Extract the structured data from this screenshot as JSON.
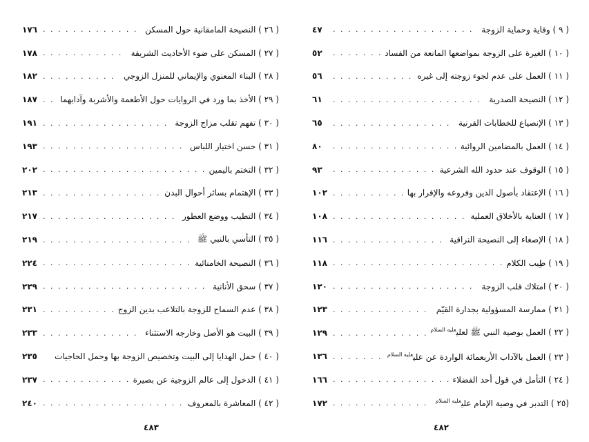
{
  "right_page": {
    "folio": "٤٨٢",
    "entries": [
      {
        "num": "( ٩ )",
        "title": "وقاية وحماية الزوجة",
        "page": "٤٧"
      },
      {
        "num": "( ١٠ )",
        "title": "الغيرة على الزوجة بمواضعها المانعة من الفساد",
        "page": "٥٢"
      },
      {
        "num": "( ١١ )",
        "title": "العمل على عدم لجوء زوجته إلى غيره",
        "page": "٥٦"
      },
      {
        "num": "( ١٢ )",
        "title": "النصيحة الصدرية",
        "page": "٦١"
      },
      {
        "num": "( ١٣ )",
        "title": "الإنصياع للخطابات القرنية",
        "page": "٦٥"
      },
      {
        "num": "( ١٤ )",
        "title": "العمل بالمضامين الروائية",
        "page": "٨٠"
      },
      {
        "num": "( ١٥ )",
        "title": "الوقوف عند حدود الله الشرعية",
        "page": "٩٣"
      },
      {
        "num": "( ١٦ )",
        "title": "الإعتقاد بأصول الدين وفروعه والإقرار بها",
        "page": "١٠٢"
      },
      {
        "num": "( ١٧ )",
        "title": "العناية بالأخلاق العملية",
        "page": "١٠٨"
      },
      {
        "num": "( ١٨ )",
        "title": "الإصغاء إلى النصيحة النراقية",
        "page": "١١٦"
      },
      {
        "num": "( ١٩ )",
        "title": "طِيب الكلام",
        "page": "١١٨"
      },
      {
        "num": "( ٢٠ )",
        "title": "امتلاك قلب الزوجة",
        "page": "١٢٠"
      },
      {
        "num": "( ٢١ )",
        "title": "ممارسة المسؤولية بجدارة القيّم",
        "page": "١٢٣"
      },
      {
        "num": "( ٢٢ )",
        "title": "العمل بوصية النبي ﷺ لعلي",
        "hon": "عليه السلام",
        "page": "١٢٩"
      },
      {
        "num": "( ٢٣ )",
        "title": "العمل بالآداب الأربعمائة الواردة عن علي",
        "hon": "عليه السلام",
        "page": "١٣٦"
      },
      {
        "num": "( ٢٤ )",
        "title": "التأمل في قول أحد الفضلاء",
        "page": "١٦٦"
      },
      {
        "num": "(٢٥ )",
        "title": "التدبر في وصية الإمام علي",
        "hon": "عليه السلام",
        "page": "١٧٢"
      }
    ]
  },
  "left_page": {
    "folio": "٤٨٣",
    "entries": [
      {
        "num": "( ٢٦ )",
        "title": "النصيحة المامقانية حول المسكن",
        "page": "١٧٦"
      },
      {
        "num": "( ٢٧ )",
        "title": "المسكن على ضوء الأحاديث الشريفة",
        "page": "١٧٨"
      },
      {
        "num": "( ٢٨ )",
        "title": "البناء المعنوي والإيماني للمنزل الزوجي",
        "page": "١٨٢"
      },
      {
        "num": "( ٢٩ )",
        "title": "الأخذ بما ورد في الروايات حول الأطعمة والأشربة وآدابهما",
        "page": "١٨٧"
      },
      {
        "num": "( ٣٠ )",
        "title": "تفهم تقلب مزاج الزوجة",
        "page": "١٩١"
      },
      {
        "num": "( ٣١ )",
        "title": "حسن اختيار اللباس",
        "page": "١٩٣"
      },
      {
        "num": "( ٣٢ )",
        "title": "التختم باليمين",
        "page": "٢٠٢"
      },
      {
        "num": "( ٣٣ )",
        "title": "الإهتمام بسائر أحوال البدن",
        "page": "٢١٣"
      },
      {
        "num": "( ٣٤ )",
        "title": "التطيب ووضع العطور",
        "page": "٢١٧"
      },
      {
        "num": "( ٣٥ )",
        "title": "التأسي بالنبي ﷺ",
        "page": "٢١٩"
      },
      {
        "num": "( ٣٦ )",
        "title": "النصيحة الخامنائية",
        "page": "٢٢٤"
      },
      {
        "num": "( ٣٧ )",
        "title": "سحق الأنانية",
        "page": "٢٢٩"
      },
      {
        "num": "( ٣٨ )",
        "title": "عدم السماح للزوجة بالتلاعب بدين الزوج",
        "page": "٢٣١"
      },
      {
        "num": "( ٣٩ )",
        "title": "البيت هو الأصل وخارجه الاستثناء",
        "page": "٢٣٣"
      },
      {
        "num": "( ٤٠ )",
        "title": "حمل الهدايا إلى البيت وتخصيص الزوجة بها وحمل الحاجيات",
        "page": "٢٣٥",
        "no_dots": true
      },
      {
        "num": "( ٤١ )",
        "title": "الدخول إلى عالم الزوجية عن بصيرة",
        "page": "٢٣٧"
      },
      {
        "num": "( ٤٢ )",
        "title": "المعاشرة بالمعروف",
        "page": "٢٤٠"
      }
    ]
  }
}
